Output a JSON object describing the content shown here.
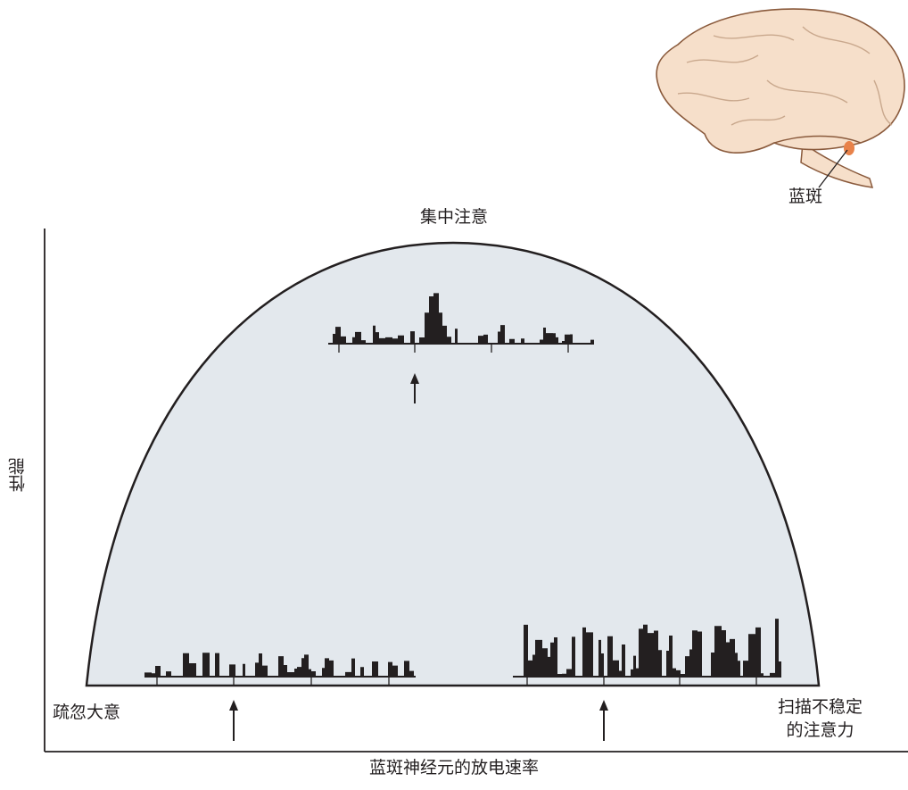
{
  "diagram": {
    "top_label": "集中注意",
    "left_label": "疏忽大意",
    "right_label_line1": "扫描不稳定",
    "right_label_line2": "的注意力",
    "x_axis_label": "蓝斑神经元的放电速率",
    "y_axis_label": "性能",
    "brain_label": "蓝斑"
  },
  "colors": {
    "curve_fill": "#e3e8ed",
    "ink": "#231f20",
    "brain_fill": "#f6dfca",
    "brain_stroke": "#8a5a3c",
    "locus_coeruleus": "#e8824a"
  },
  "icons": [
    "brain-illustration-icon",
    "stimulus-arrow-icon"
  ]
}
